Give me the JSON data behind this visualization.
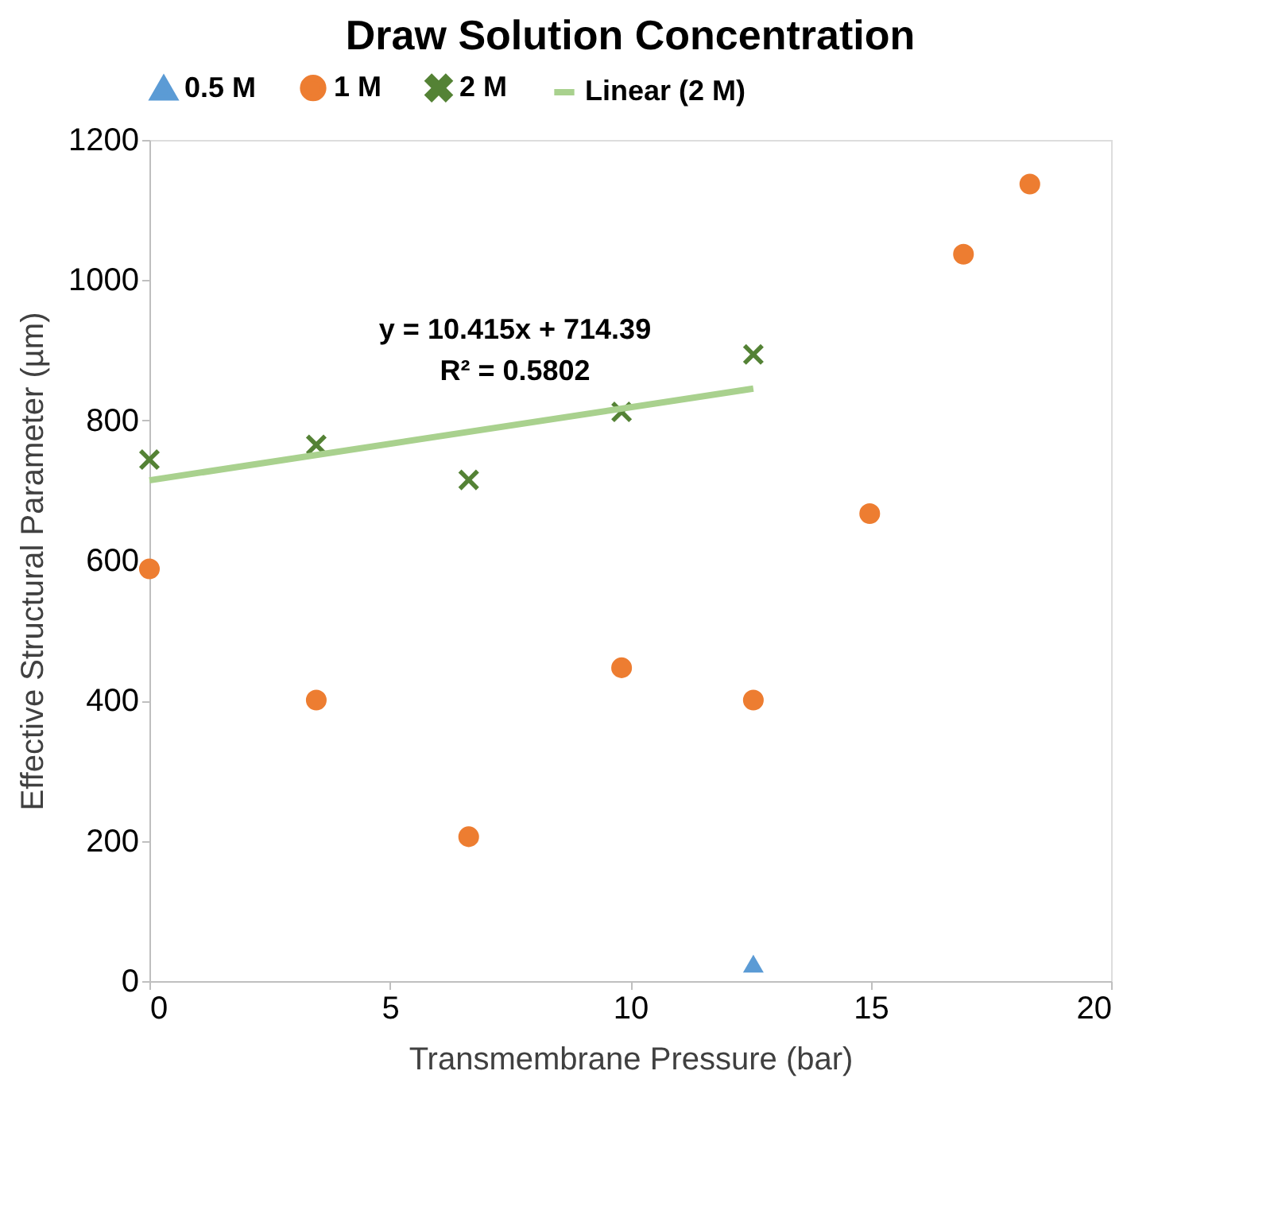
{
  "chart_data": {
    "type": "scatter",
    "title": "Draw Solution Concentration",
    "xlabel": "Transmembrane Pressure (bar)",
    "ylabel": "Effective Structural Parameter (µm)",
    "xlim": [
      0,
      20
    ],
    "xticks": [
      0,
      5,
      10,
      15,
      20
    ],
    "ylim": [
      0,
      1200
    ],
    "yticks": [
      0,
      200,
      400,
      600,
      800,
      1000,
      1200
    ],
    "grid": false,
    "legend": "top",
    "annotations": [
      "y = 10.415x + 714.39",
      "R² = 0.5802"
    ],
    "series": [
      {
        "name": "0.5 M",
        "color": "#5b9bd5",
        "marker": "triangle",
        "x": [
          12.56
        ],
        "values": [
          25
        ]
      },
      {
        "name": "1 M",
        "color": "#ed7d31",
        "marker": "circle",
        "x": [
          0,
          3.47,
          6.64,
          9.82,
          12.56,
          14.98,
          16.93,
          18.31
        ],
        "values": [
          588,
          401,
          206,
          447,
          401,
          667,
          1037,
          1137
        ]
      },
      {
        "name": "2 M",
        "color": "#548235",
        "marker": "cross",
        "x": [
          0,
          3.47,
          6.64,
          9.82,
          12.56
        ],
        "values": [
          744,
          765,
          715,
          812,
          894
        ]
      },
      {
        "name": "Linear (2 M)",
        "type": "line",
        "color": "#a9d18e",
        "line_style": "solid",
        "x": [
          0,
          12.56
        ],
        "values": [
          714.39,
          845.2
        ]
      }
    ]
  }
}
